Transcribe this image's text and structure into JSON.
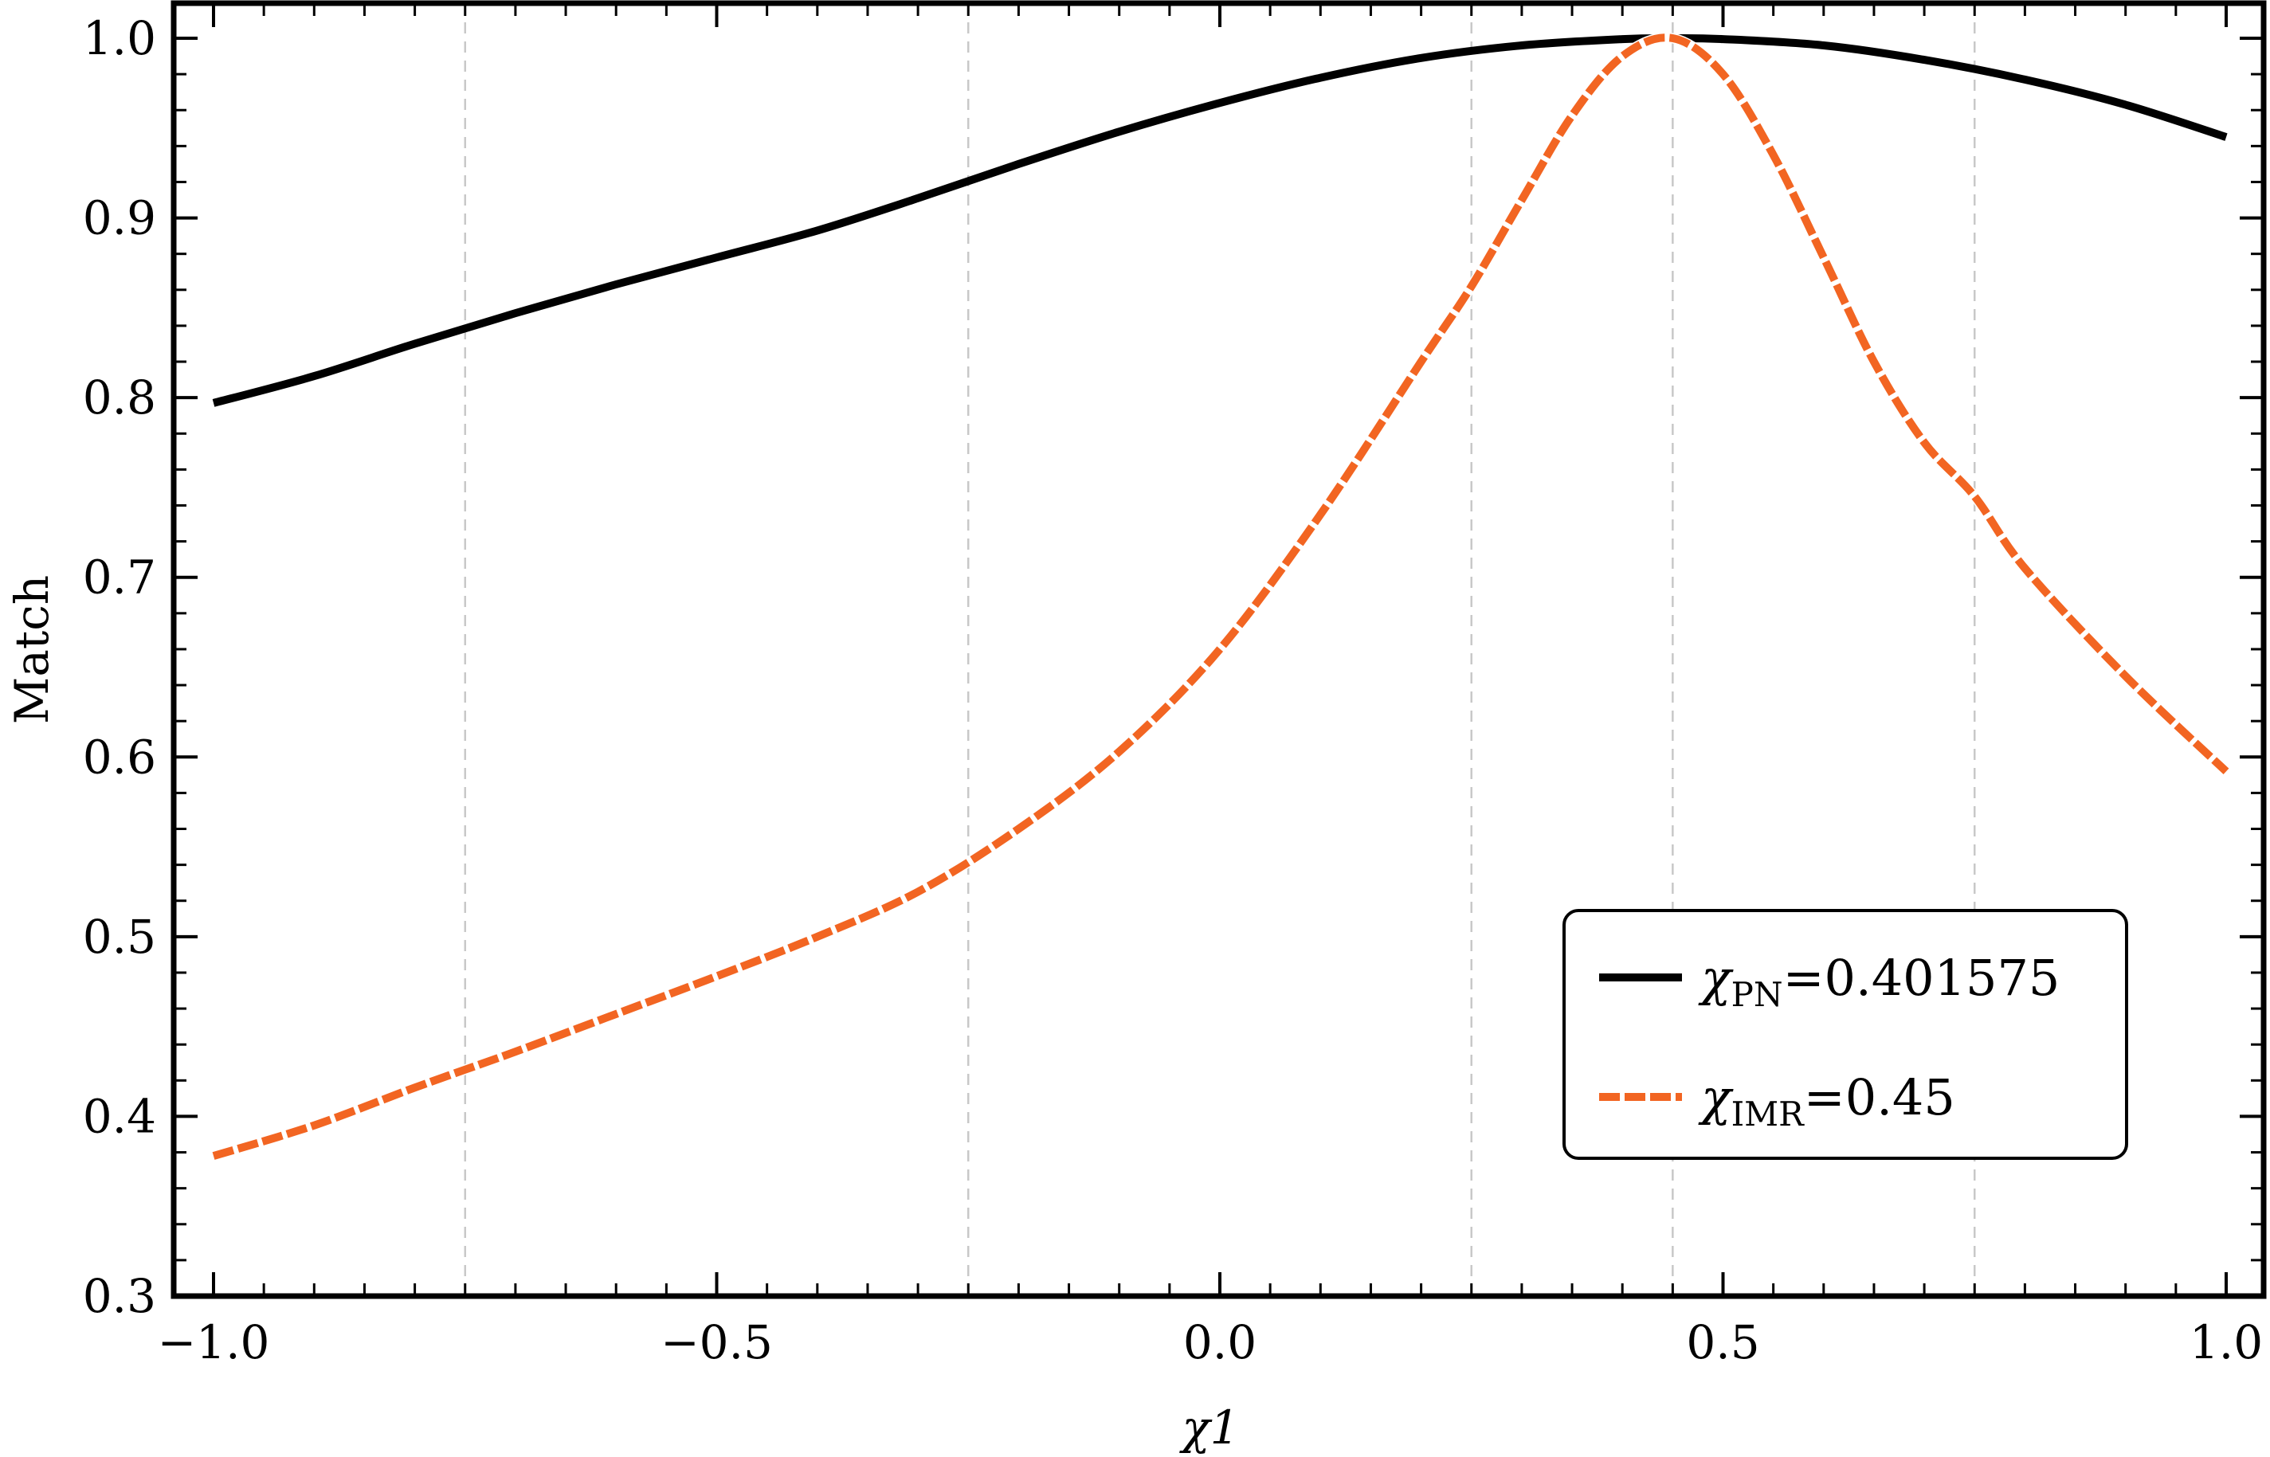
{
  "chart_data": {
    "type": "line",
    "title": "",
    "xlabel": "χ1",
    "ylabel": "Match",
    "xlim": [
      -1.0,
      1.0
    ],
    "ylim": [
      0.3,
      1.0
    ],
    "x_ticks": [
      "−1.0",
      "−0.5",
      "0.0",
      "0.5",
      "1.0"
    ],
    "x_tick_values": [
      -1.0,
      -0.5,
      0.0,
      0.5,
      1.0
    ],
    "y_ticks": [
      "0.3",
      "0.4",
      "0.5",
      "0.6",
      "0.7",
      "0.8",
      "0.9",
      "1.0"
    ],
    "y_tick_values": [
      0.3,
      0.4,
      0.5,
      0.6,
      0.7,
      0.8,
      0.9,
      1.0
    ],
    "gridlines_x": [
      -0.75,
      -0.25,
      0.25,
      0.45,
      0.75
    ],
    "legend_position": "bottom-right",
    "series": [
      {
        "name": "χPN=0.401575",
        "legend_symbol": "χ",
        "legend_sub": "PN",
        "legend_value": "=0.401575",
        "color": "#000000",
        "style": "solid",
        "x": [
          -1.0,
          -0.9,
          -0.8,
          -0.7,
          -0.6,
          -0.5,
          -0.4,
          -0.3,
          -0.2,
          -0.1,
          0.0,
          0.1,
          0.2,
          0.3,
          0.4,
          0.45,
          0.5,
          0.6,
          0.7,
          0.8,
          0.9,
          1.0
        ],
        "y": [
          0.797,
          0.812,
          0.83,
          0.847,
          0.863,
          0.878,
          0.893,
          0.911,
          0.93,
          0.948,
          0.964,
          0.978,
          0.989,
          0.996,
          0.9995,
          1.0,
          0.9995,
          0.996,
          0.988,
          0.977,
          0.963,
          0.945
        ]
      },
      {
        "name": "χIMR=0.45",
        "legend_symbol": "χ",
        "legend_sub": "IMR",
        "legend_value": "=0.45",
        "color": "#f26522",
        "style": "dashed",
        "x": [
          -1.0,
          -0.9,
          -0.8,
          -0.7,
          -0.6,
          -0.5,
          -0.4,
          -0.3,
          -0.2,
          -0.1,
          0.0,
          0.1,
          0.2,
          0.25,
          0.3,
          0.35,
          0.4,
          0.45,
          0.5,
          0.55,
          0.6,
          0.65,
          0.7,
          0.75,
          0.8,
          0.9,
          1.0
        ],
        "y": [
          0.378,
          0.395,
          0.416,
          0.436,
          0.457,
          0.478,
          0.5,
          0.525,
          0.56,
          0.603,
          0.66,
          0.735,
          0.82,
          0.862,
          0.91,
          0.957,
          0.99,
          1.0,
          0.98,
          0.935,
          0.878,
          0.82,
          0.775,
          0.745,
          0.705,
          0.645,
          0.592
        ]
      }
    ]
  }
}
